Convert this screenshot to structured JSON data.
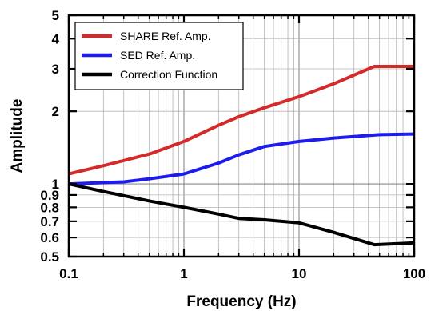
{
  "chart_data": {
    "type": "line",
    "xscale": "log",
    "yscale": "log",
    "xlim": [
      0.1,
      100
    ],
    "ylim": [
      0.5,
      5
    ],
    "xlabel": "Frequency (Hz)",
    "ylabel": "Amplitude",
    "grid": true,
    "legend_position": "top-left",
    "x_ticks": [
      {
        "value": 0.1,
        "label": "0.1"
      },
      {
        "value": 1,
        "label": "1"
      },
      {
        "value": 10,
        "label": "10"
      },
      {
        "value": 100,
        "label": "100"
      }
    ],
    "y_ticks": [
      {
        "value": 0.5,
        "label": "0.5"
      },
      {
        "value": 0.6,
        "label": "0.6"
      },
      {
        "value": 0.7,
        "label": "0.7"
      },
      {
        "value": 0.8,
        "label": "0.8"
      },
      {
        "value": 0.9,
        "label": "0.9"
      },
      {
        "value": 1,
        "label": "1"
      },
      {
        "value": 2,
        "label": "2"
      },
      {
        "value": 3,
        "label": "3"
      },
      {
        "value": 4,
        "label": "4"
      },
      {
        "value": 5,
        "label": "5"
      }
    ],
    "series": [
      {
        "name": "SHARE Ref. Amp.",
        "color": "#d42a2a",
        "points": [
          [
            0.1,
            1.1
          ],
          [
            0.2,
            1.19
          ],
          [
            0.5,
            1.33
          ],
          [
            1,
            1.5
          ],
          [
            2,
            1.75
          ],
          [
            3,
            1.9
          ],
          [
            5,
            2.07
          ],
          [
            10,
            2.3
          ],
          [
            20,
            2.6
          ],
          [
            45,
            3.07
          ],
          [
            100,
            3.07
          ]
        ]
      },
      {
        "name": "SED Ref. Amp.",
        "color": "#1c1cee",
        "points": [
          [
            0.1,
            1.0
          ],
          [
            0.3,
            1.02
          ],
          [
            0.5,
            1.05
          ],
          [
            1,
            1.1
          ],
          [
            2,
            1.22
          ],
          [
            3,
            1.32
          ],
          [
            5,
            1.43
          ],
          [
            10,
            1.5
          ],
          [
            20,
            1.55
          ],
          [
            50,
            1.6
          ],
          [
            100,
            1.61
          ]
        ]
      },
      {
        "name": "Correction Function",
        "color": "#000000",
        "points": [
          [
            0.1,
            1.0
          ],
          [
            0.2,
            0.93
          ],
          [
            0.5,
            0.85
          ],
          [
            1,
            0.8
          ],
          [
            2,
            0.75
          ],
          [
            3,
            0.72
          ],
          [
            5,
            0.71
          ],
          [
            10,
            0.69
          ],
          [
            20,
            0.63
          ],
          [
            45,
            0.56
          ],
          [
            100,
            0.57
          ]
        ]
      }
    ]
  }
}
